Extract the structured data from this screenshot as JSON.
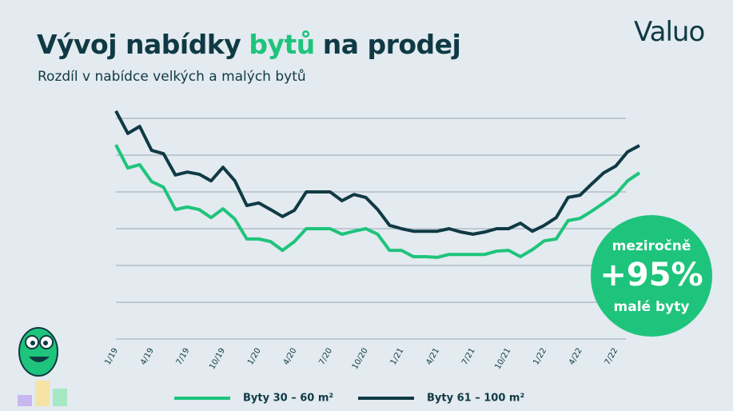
{
  "brand": "Valuo",
  "badge": {
    "top": "meziročně",
    "value": "+95%",
    "bottom": "malé byty"
  },
  "chart_data": {
    "type": "line",
    "title_parts": [
      "Vývoj nabídky",
      "bytů",
      "na prodej"
    ],
    "subtitle": "Rozdíl v nabídce velkých a malých bytů",
    "categories": [
      "1/19",
      null,
      null,
      "4/19",
      null,
      null,
      "7/19",
      null,
      null,
      "10/19",
      null,
      null,
      "1/20",
      null,
      null,
      "4/20",
      null,
      null,
      "7/20",
      null,
      null,
      "10/20",
      null,
      null,
      "1/21",
      null,
      null,
      "4/21",
      null,
      null,
      "7/21",
      null,
      null,
      "10/21",
      null,
      null,
      "1/22",
      null,
      null,
      "4/22",
      null,
      null,
      "7/22",
      null,
      null
    ],
    "series": [
      {
        "name": "Byty 30 – 60 m²",
        "color": "#1ec47b",
        "values": [
          5.28,
          4.65,
          4.74,
          4.28,
          4.13,
          3.52,
          3.59,
          3.52,
          3.3,
          3.54,
          3.26,
          2.72,
          2.72,
          2.65,
          2.41,
          2.65,
          3.0,
          3.0,
          3.0,
          2.85,
          2.93,
          3.0,
          2.85,
          2.41,
          2.41,
          2.24,
          2.24,
          2.22,
          2.3,
          2.3,
          2.3,
          2.3,
          2.39,
          2.41,
          2.24,
          2.43,
          2.67,
          2.72,
          3.22,
          3.28,
          3.48,
          3.7,
          3.93,
          4.3,
          4.52
        ]
      },
      {
        "name": "Byty 61 – 100 m²",
        "color": "#0f3a44",
        "values": [
          6.2,
          5.59,
          5.78,
          5.13,
          5.04,
          4.46,
          4.54,
          4.48,
          4.3,
          4.67,
          4.3,
          3.63,
          3.7,
          3.52,
          3.33,
          3.5,
          4.0,
          4.0,
          4.0,
          3.76,
          3.93,
          3.85,
          3.52,
          3.09,
          3.0,
          2.93,
          2.93,
          2.93,
          3.0,
          2.91,
          2.85,
          2.91,
          3.0,
          3.0,
          3.15,
          2.93,
          3.09,
          3.3,
          3.85,
          3.91,
          4.22,
          4.52,
          4.7,
          5.09,
          5.26
        ]
      }
    ],
    "ylim": [
      0,
      6
    ],
    "yticks": [
      0,
      1,
      2,
      3,
      4,
      5,
      6
    ],
    "grid": true
  }
}
